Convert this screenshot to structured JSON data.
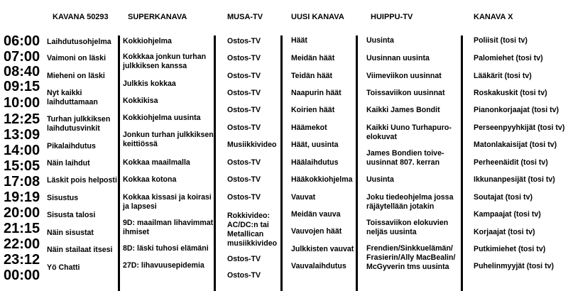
{
  "times": [
    "06:00",
    "07:00",
    "08:40",
    "09:15",
    "10:00",
    "12:25",
    "13:09",
    "14:00",
    "15:05",
    "17:08",
    "19:19",
    "20:00",
    "21:15",
    "22:00",
    "23:12",
    "00:00"
  ],
  "channels": [
    {
      "name": "KAVANA 50293",
      "programs": [
        "Laihdutusohjelma",
        "Vaimoni on läski",
        "Mieheni on läski",
        "Nyt kaikki\nlaihduttamaan",
        "Turhan julkkiksen\nlaihdutusvinkit",
        "Pikalaihdutus",
        "Näin laihdut",
        "Läskit pois helposti",
        "Sisustus",
        "Sisusta talosi",
        "Näin sisustat",
        "Näin stailaat itsesi",
        "Yö Chatti"
      ]
    },
    {
      "name": "SUPERKANAVA",
      "programs": [
        "Kokkiohjelma",
        "Kokkkaa jonkun turhan\njulkkiksen kanssa",
        "Julkkis kokkaa",
        "Kokkikisa",
        "Kokkiohjelma uusinta",
        "Jonkun turhan julkkiksen\nkeittiössä",
        "Kokkaa maailmalla",
        "Kokkaa kotona",
        "Kokkaa kissasi ja koirasi\nja lapsesi",
        "9D: maailman lihavimmat\nihmiset",
        "8D: läski tuhosi elämäni",
        "27D: lihavuusepidemia"
      ]
    },
    {
      "name": "MUSA-TV",
      "programs": [
        "Ostos-TV",
        "Ostos-TV",
        "Ostos-TV",
        "Ostos-TV",
        "Ostos-TV",
        "Ostos-TV",
        "Musiikkivideo",
        "Ostos-TV",
        "Ostos-TV",
        "Ostos-TV",
        "Rokkivideo:\nAC/DC:n tai\nMetallican\nmusiikkivideo",
        "Ostos-TV",
        "Ostos-TV"
      ]
    },
    {
      "name": "UUSI KANAVA",
      "programs": [
        "Häät",
        "Meidän häät",
        "Teidän häät",
        "Naapurin häät",
        "Koirien häät",
        "Häämekot",
        "Häät, uusinta",
        "Häälaihdutus",
        "Hääkokkiohjelma",
        "Vauvat",
        "Meidän vauva",
        "Vauvojen häät",
        "Julkkisten vauvat",
        "Vauvalaihdutus"
      ]
    },
    {
      "name": "HUIPPU-TV",
      "programs": [
        "Uusinta",
        "Uusinnan uusinta",
        "Viimeviikon uusinnat",
        "Toissaviikon uusinnat",
        "Kaikki James Bondit",
        "Kaikki Uuno Turhapuro-\nelokuvat",
        "James Bondien toive-\nuusinnat 807. kerran",
        "Uusinta",
        "Joku tiedeohjelma jossa\nräjäytellään jotakin",
        "Toissaviikon elokuvien\nneljäs uusinta",
        "Frendien/Sinkkuelämän/\nFrasierin/Ally MacBealin/\nMcGyverin tms uusinta"
      ]
    },
    {
      "name": "KANAVA X",
      "programs": [
        "Poliisit (tosi tv)",
        "Palomiehet (tosi tv)",
        "Lääkärit (tosi tv)",
        "Roskakuskit (tosi tv)",
        "Pianonkorjaajat (tosi tv)",
        "Perseenpyyhkijät (tosi tv)",
        "Matonlakaisijat (tosi tv)",
        "Perheenäidit (tosi tv)",
        "Ikkunanpesijät (tosi tv)",
        "Soutajat (tosi tv)",
        "Kampaajat (tosi tv)",
        "Korjaajat (tosi tv)",
        "Putkimiehet (tosi tv)",
        "Puhelinmyyjät (tosi tv)"
      ]
    }
  ]
}
